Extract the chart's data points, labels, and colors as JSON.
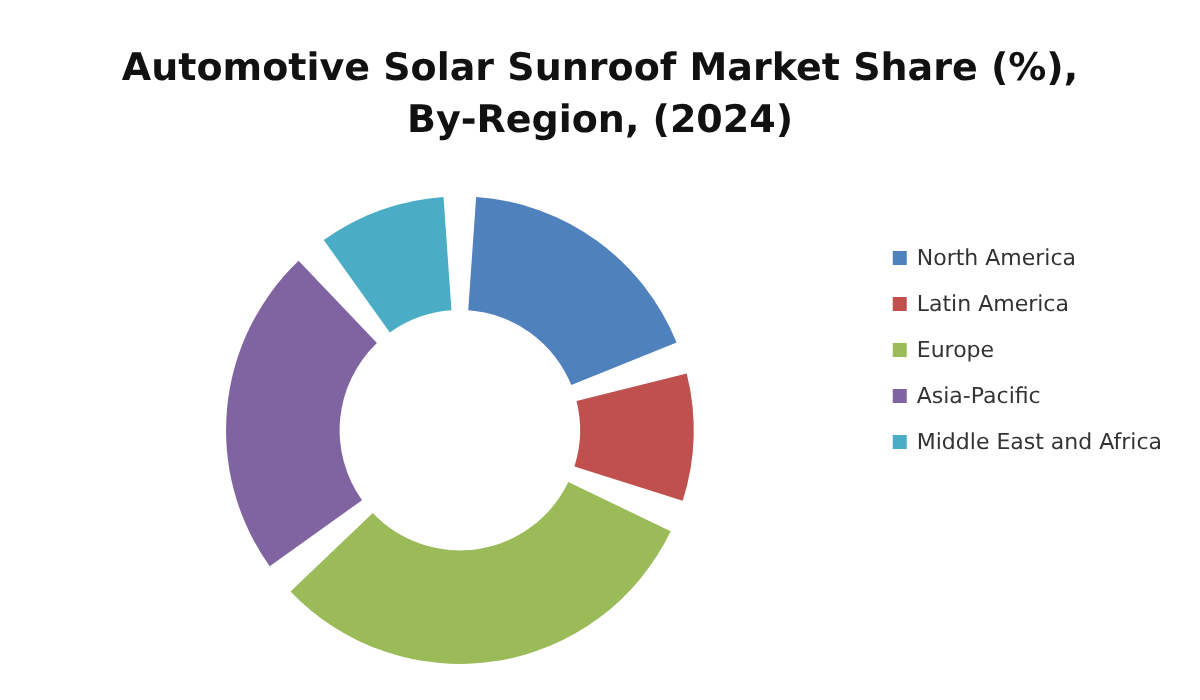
{
  "chart_data": {
    "type": "donut",
    "title": "Automotive Solar Sunroof Market Share (%),\nBy-Region, (2024)",
    "categories": [
      "North America",
      "Latin America",
      "Europe",
      "Asia-Pacific",
      "Middle East and Africa"
    ],
    "values": [
      20,
      11,
      33,
      25,
      11
    ],
    "colors": [
      "#4f81bd",
      "#c0504d",
      "#9bbb59",
      "#8064a2",
      "#4bacc6"
    ],
    "legend": "right"
  }
}
